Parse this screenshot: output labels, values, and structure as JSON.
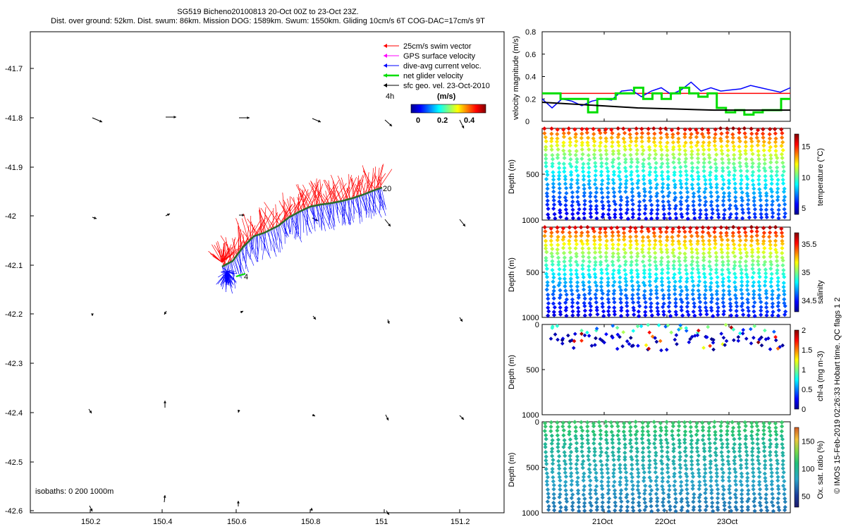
{
  "title": {
    "line1": "SG519 Bicheno20100813 20-Oct 00Z to 23-Oct 23Z.",
    "line2": "Dist. over ground: 52km. Dist. swum: 86km. Mission DOG: 1589km. Swum: 1550km. Gliding 10cm/s 6T COG-DAC=17cm/s 9T"
  },
  "credit": "© IMOS 15-Feb-2019 02:26:33 Hobart time. QC flags 1  2",
  "map": {
    "legend": [
      {
        "label": "25cm/s swim vector",
        "color": "#ff0000"
      },
      {
        "label": "GPS surface velocity",
        "color": "#ff00ff"
      },
      {
        "label": "dive-avg current veloc.",
        "color": "#0000ff"
      },
      {
        "label": "net glider velocity",
        "color": "#00dd00"
      },
      {
        "label": "sfc geo. vel. 23-Oct-2010",
        "color": "#000000"
      }
    ],
    "time_label": "4h",
    "colorbar_title": "(m/s)",
    "colorbar_ticks": [
      "0",
      "0.2",
      "0.4"
    ],
    "isobaths_label": "isobaths: 0   200  1000m",
    "start_label": "20",
    "end_label": "4",
    "lon_ticks": [
      "150.2",
      "150.4",
      "150.6",
      "150.8",
      "151",
      "151.2"
    ],
    "lat_ticks": [
      "-41.7",
      "-41.8",
      "-41.9",
      "-42",
      "-42.1",
      "-42.2",
      "-42.3",
      "-42.4",
      "-42.5",
      "-42.6"
    ]
  },
  "chart_data": [
    {
      "type": "line",
      "name": "velocity",
      "ylabel": "velocity magnitude (m/s)",
      "ylim": [
        0,
        0.8
      ],
      "yticks": [
        "0",
        "0.2",
        "0.4",
        "0.6",
        "0.8"
      ],
      "xticks": [
        "21Oct",
        "22Oct",
        "23Oct"
      ],
      "series": [
        {
          "color": "#ff0000",
          "values": [
            0.25,
            0.25
          ]
        },
        {
          "color": "#0000ff",
          "values": [
            0.2,
            0.12,
            0.2,
            0.18,
            0.14,
            0.18,
            0.2,
            0.19,
            0.27,
            0.28,
            0.22,
            0.27,
            0.3,
            0.24,
            0.28,
            0.35,
            0.27,
            0.3,
            0.27,
            0.28,
            0.29,
            0.32,
            0.3,
            0.28,
            0.26,
            0.3
          ]
        },
        {
          "color": "#00dd00",
          "values": [
            0.25,
            0.25,
            0.2,
            0.2,
            0.2,
            0.08,
            0.2,
            0.2,
            0.25,
            0.25,
            0.3,
            0.2,
            0.25,
            0.2,
            0.25,
            0.3,
            0.25,
            0.22,
            0.25,
            0.12,
            0.08,
            0.1,
            0.06,
            0.08,
            0.1,
            0.1,
            0.2
          ]
        },
        {
          "color": "#000000",
          "values": [
            0.17,
            0.16,
            0.15,
            0.14,
            0.13,
            0.12,
            0.115,
            0.11,
            0.105,
            0.1,
            0.1,
            0.1,
            0.1,
            0.1
          ]
        }
      ]
    },
    {
      "type": "scatter",
      "name": "temperature",
      "ylabel": "Depth (m)",
      "ylim": [
        1000,
        0
      ],
      "yticks": [
        "500",
        "1000"
      ],
      "colorbar_label": "temperature (°C)",
      "colorbar_ticks": [
        "5",
        "10",
        "15"
      ],
      "crange": [
        4,
        17
      ]
    },
    {
      "type": "scatter",
      "name": "salinity",
      "ylabel": "Depth (m)",
      "ylim": [
        1000,
        0
      ],
      "yticks": [
        "500",
        "1000"
      ],
      "colorbar_label": "salinity",
      "colorbar_ticks": [
        "34.5",
        "35",
        "35.5"
      ],
      "crange": [
        34.3,
        35.7
      ]
    },
    {
      "type": "scatter",
      "name": "chl-a",
      "ylabel": "Depth (m)",
      "ylim": [
        1000,
        0
      ],
      "yticks": [
        "0",
        "500",
        "1000"
      ],
      "colorbar_label": "chl-a (mg m-3)",
      "colorbar_ticks": [
        "0",
        "0.5",
        "1",
        "1.5",
        "2"
      ],
      "crange": [
        0,
        2
      ]
    },
    {
      "type": "scatter",
      "name": "oxygen",
      "ylabel": "Depth (m)",
      "ylim": [
        1000,
        0
      ],
      "yticks": [
        "0",
        "500",
        "1000"
      ],
      "colorbar_label": "Ox. sat. ratio (%)",
      "colorbar_ticks": [
        "50",
        "100",
        "150"
      ],
      "crange": [
        30,
        175
      ]
    }
  ]
}
